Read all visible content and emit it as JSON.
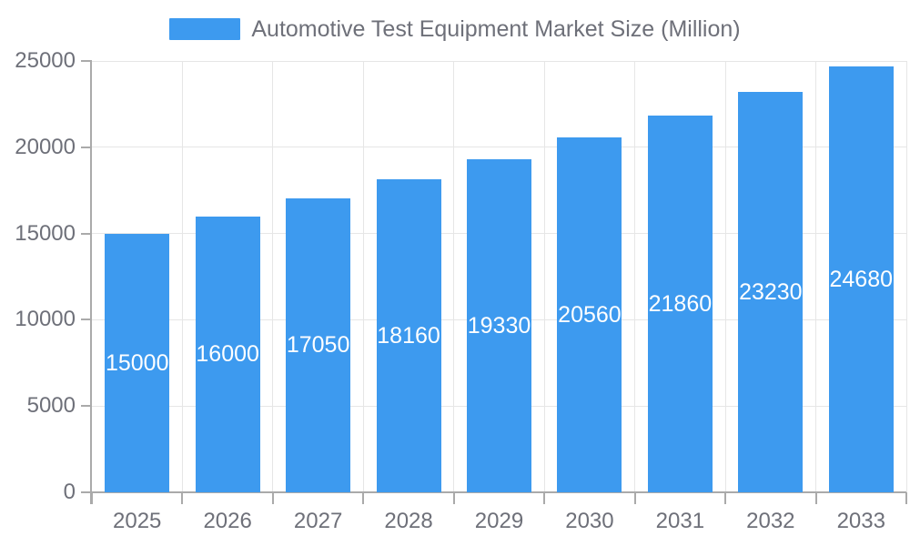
{
  "legend": {
    "label": "Automotive Test Equipment Market Size (Million)"
  },
  "chart_data": {
    "type": "bar",
    "title": "Automotive Test Equipment Market Size (Million)",
    "categories": [
      "2025",
      "2026",
      "2027",
      "2028",
      "2029",
      "2030",
      "2031",
      "2032",
      "2033"
    ],
    "values": [
      15000,
      16000,
      17050,
      18160,
      19330,
      20560,
      21860,
      23230,
      24680
    ],
    "series_name": "Automotive Test Equipment Market Size (Million)",
    "xlabel": "",
    "ylabel": "",
    "yticks": [
      0,
      5000,
      10000,
      15000,
      20000,
      25000
    ],
    "ylim": [
      0,
      25000
    ],
    "grid": true,
    "legend_position": "top-center",
    "value_labels": "inside-center",
    "colors": {
      "bar": "#3d9aef",
      "bar_label": "#ffffff",
      "axis_line": "#aaaaaa",
      "grid_line": "#e6e6e6",
      "tick_text": "#6e7079"
    }
  }
}
